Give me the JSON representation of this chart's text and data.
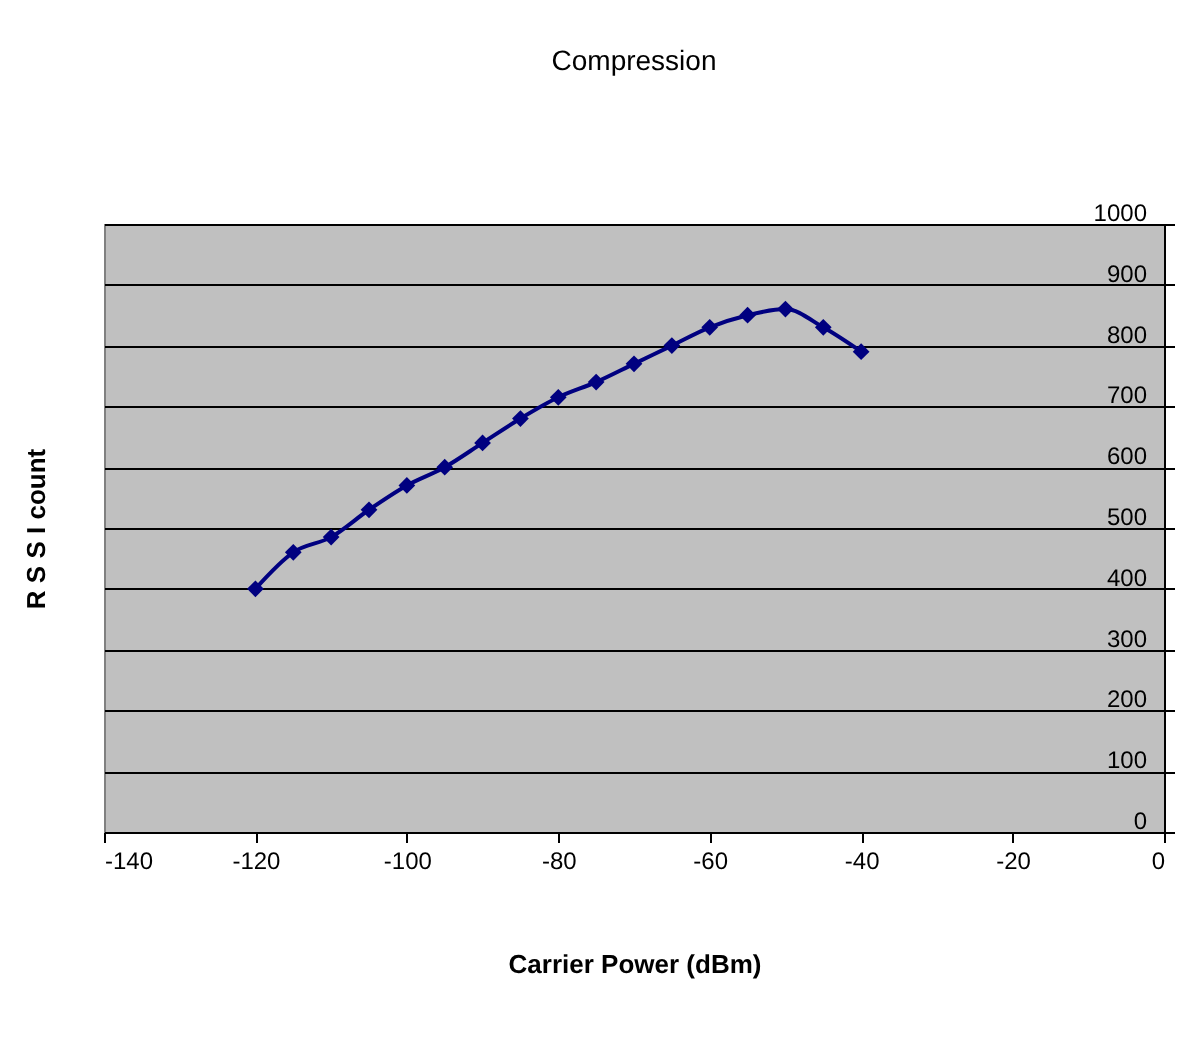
{
  "chart_data": {
    "type": "line",
    "title": "Compression",
    "xlabel": "Carrier Power (dBm)",
    "ylabel": "R S S I count",
    "x": [
      -120,
      -115,
      -110,
      -105,
      -100,
      -95,
      -90,
      -85,
      -80,
      -75,
      -70,
      -65,
      -60,
      -55,
      -50,
      -45,
      -40
    ],
    "series": [
      {
        "color": "#000080",
        "values": [
          400,
          460,
          485,
          530,
          570,
          600,
          640,
          680,
          715,
          740,
          770,
          800,
          830,
          850,
          860,
          830,
          790
        ]
      }
    ],
    "xlim": [
      -140,
      0
    ],
    "xticks": [
      -140,
      -120,
      -100,
      -80,
      -60,
      -40,
      -20,
      0
    ],
    "ylim": [
      0,
      1000
    ],
    "yticks": [
      0,
      100,
      200,
      300,
      400,
      500,
      600,
      700,
      800,
      900,
      1000
    ],
    "grid": "y",
    "marker": "diamond",
    "line_style": "solid",
    "legend": false
  }
}
